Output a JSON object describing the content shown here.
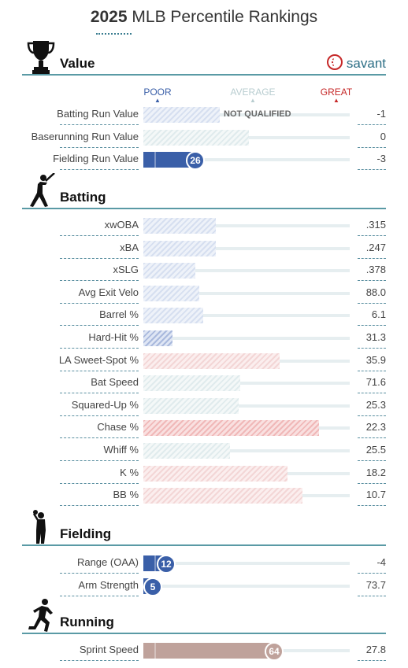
{
  "title": {
    "year": "2025",
    "rest": "MLB Percentile Rankings"
  },
  "brand": "savant",
  "scale": {
    "poor": "POOR",
    "average": "AVERAGE",
    "great": "GREAT"
  },
  "colors": {
    "poor": "#3a5fa8",
    "average": "#b8cdd0",
    "great": "#c62828",
    "running": "#bfa29b",
    "accent": "#5a9aa5"
  },
  "sections": {
    "value": {
      "label": "Value",
      "icon": "trophy-icon"
    },
    "batting": {
      "label": "Batting",
      "icon": "batter-icon"
    },
    "fielding": {
      "label": "Fielding",
      "icon": "fielder-icon"
    },
    "running": {
      "label": "Running",
      "icon": "runner-icon"
    }
  },
  "value_rows": [
    {
      "label": "Batting Run Value",
      "value": "-1",
      "percentile": 37,
      "tone": "poor-light",
      "status": "NOT QUALIFIED"
    },
    {
      "label": "Baserunning Run Value",
      "value": "0",
      "percentile": 51,
      "tone": "neutral-light"
    },
    {
      "label": "Fielding Run Value",
      "value": "-3",
      "percentile": 26,
      "tone": "poor-solid",
      "rank": "26"
    }
  ],
  "batting_rows": [
    {
      "label": "xwOBA",
      "value": ".315",
      "percentile": 35,
      "tone": "poor-light"
    },
    {
      "label": "xBA",
      "value": ".247",
      "percentile": 35,
      "tone": "poor-light"
    },
    {
      "label": "xSLG",
      "value": ".378",
      "percentile": 25,
      "tone": "poor-light"
    },
    {
      "label": "Avg Exit Velo",
      "value": "88.0",
      "percentile": 27,
      "tone": "poor-light"
    },
    {
      "label": "Barrel %",
      "value": "6.1",
      "percentile": 29,
      "tone": "poor-light"
    },
    {
      "label": "Hard-Hit %",
      "value": "31.3",
      "percentile": 14,
      "tone": "poor-mid"
    },
    {
      "label": "LA Sweet-Spot %",
      "value": "35.9",
      "percentile": 66,
      "tone": "great-light"
    },
    {
      "label": "Bat Speed",
      "value": "71.6",
      "percentile": 47,
      "tone": "neutral-light"
    },
    {
      "label": "Squared-Up %",
      "value": "25.3",
      "percentile": 46,
      "tone": "neutral-light"
    },
    {
      "label": "Chase %",
      "value": "22.3",
      "percentile": 85,
      "tone": "great-mid"
    },
    {
      "label": "Whiff %",
      "value": "25.5",
      "percentile": 42,
      "tone": "neutral-light"
    },
    {
      "label": "K %",
      "value": "18.2",
      "percentile": 70,
      "tone": "great-light"
    },
    {
      "label": "BB %",
      "value": "10.7",
      "percentile": 77,
      "tone": "great-light"
    }
  ],
  "fielding_rows": [
    {
      "label": "Range (OAA)",
      "value": "-4",
      "percentile": 12,
      "tone": "poor-solid",
      "rank": "12"
    },
    {
      "label": "Arm Strength",
      "value": "73.7",
      "percentile": 5,
      "tone": "poor-solid",
      "rank": "5"
    }
  ],
  "running_rows": [
    {
      "label": "Sprint Speed",
      "value": "27.8",
      "percentile": 64,
      "tone": "running-solid",
      "rank": "64"
    }
  ]
}
